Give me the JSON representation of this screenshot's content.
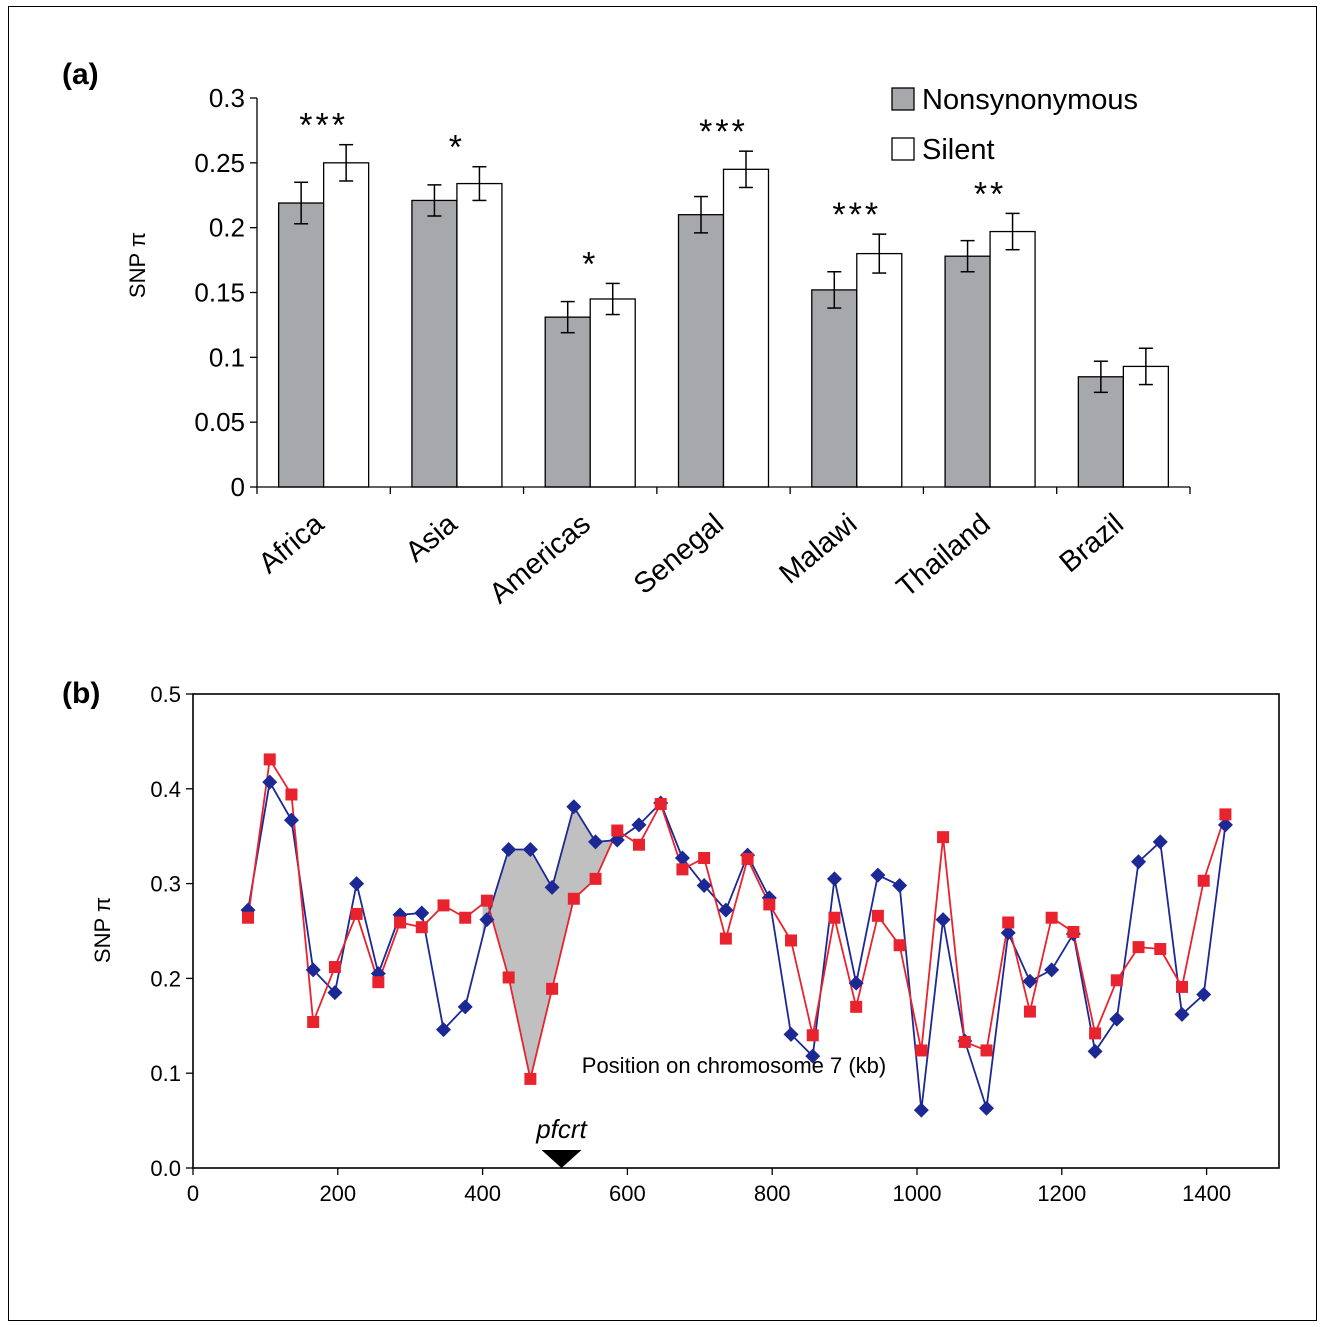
{
  "chart_data": [
    {
      "panel_label": "(a)",
      "type": "bar",
      "categories": [
        "Africa",
        "Asia",
        "Americas",
        "Senegal",
        "Malawi",
        "Thailand",
        "Brazil"
      ],
      "series": [
        {
          "name": "Nonsynonymous",
          "color": "#a6a8ab",
          "values": [
            0.219,
            0.221,
            0.131,
            0.21,
            0.152,
            0.178,
            0.085
          ],
          "errors": [
            0.016,
            0.012,
            0.012,
            0.014,
            0.014,
            0.012,
            0.012
          ]
        },
        {
          "name": "Silent",
          "color": "#ffffff",
          "values": [
            0.25,
            0.234,
            0.145,
            0.245,
            0.18,
            0.197,
            0.093
          ],
          "errors": [
            0.014,
            0.013,
            0.012,
            0.014,
            0.015,
            0.014,
            0.014
          ]
        }
      ],
      "significance": [
        "***",
        "*",
        "*",
        "***",
        "***",
        "**",
        ""
      ],
      "ylabel": "SNP π",
      "xlabel": "",
      "ylim": [
        0,
        0.3
      ],
      "yticks": [
        "0",
        "0.05",
        "0.1",
        "0.15",
        "0.2",
        "0.25",
        "0.3"
      ],
      "ytick_values": [
        0,
        0.05,
        0.1,
        0.15,
        0.2,
        0.25,
        0.3
      ],
      "legend_position": "top-right",
      "grid": false
    },
    {
      "panel_label": "(b)",
      "type": "line",
      "xlabel": "Position on chromosome 7 (kb)",
      "ylabel": "SNP π",
      "xlim": [
        0,
        1500
      ],
      "ylim": [
        0,
        0.5
      ],
      "xticks": [
        "0",
        "200",
        "400",
        "600",
        "800",
        "1000",
        "1200",
        "1400"
      ],
      "xtick_values": [
        0,
        200,
        400,
        600,
        800,
        1000,
        1200,
        1400
      ],
      "yticks": [
        "0.0",
        "0.1",
        "0.2",
        "0.3",
        "0.4",
        "0.5"
      ],
      "ytick_values": [
        0,
        0.1,
        0.2,
        0.3,
        0.4,
        0.5
      ],
      "grid": false,
      "annotation": {
        "text": "pfcrt",
        "x": 509,
        "marker": "triangle-down"
      },
      "shaded_region_x": [
        400,
        580
      ],
      "shade_color": "#c0c0c0",
      "series": [
        {
          "color": "#1c2894",
          "marker": "diamond",
          "x": [
            76,
            106,
            136,
            166,
            196,
            226,
            256,
            286,
            316,
            346,
            376,
            406,
            436,
            466,
            496,
            526,
            556,
            586,
            616,
            646,
            676,
            706,
            736,
            766,
            796,
            826,
            856,
            886,
            916,
            946,
            976,
            1006,
            1036,
            1066,
            1096,
            1126,
            1156,
            1186,
            1216,
            1246,
            1276,
            1306,
            1336,
            1366,
            1396,
            1426
          ],
          "y": [
            0.272,
            0.407,
            0.367,
            0.209,
            0.185,
            0.3,
            0.205,
            0.267,
            0.269,
            0.146,
            0.17,
            0.262,
            0.336,
            0.336,
            0.296,
            0.381,
            0.344,
            0.346,
            0.362,
            0.385,
            0.327,
            0.298,
            0.272,
            0.33,
            0.285,
            0.141,
            0.118,
            0.305,
            0.195,
            0.309,
            0.298,
            0.061,
            0.262,
            0.134,
            0.063,
            0.248,
            0.197,
            0.209,
            0.247,
            0.123,
            0.157,
            0.323,
            0.344,
            0.162,
            0.183,
            0.362
          ]
        },
        {
          "color": "#e8232e",
          "marker": "square",
          "x": [
            76,
            106,
            136,
            166,
            196,
            226,
            256,
            286,
            316,
            346,
            376,
            406,
            436,
            466,
            496,
            526,
            556,
            586,
            616,
            646,
            676,
            706,
            736,
            766,
            796,
            826,
            856,
            886,
            916,
            946,
            976,
            1006,
            1036,
            1066,
            1096,
            1126,
            1156,
            1186,
            1216,
            1246,
            1276,
            1306,
            1336,
            1366,
            1396,
            1426
          ],
          "y": [
            0.264,
            0.431,
            0.394,
            0.154,
            0.212,
            0.268,
            0.196,
            0.259,
            0.254,
            0.277,
            0.264,
            0.282,
            0.201,
            0.094,
            0.189,
            0.284,
            0.305,
            0.356,
            0.341,
            0.384,
            0.315,
            0.327,
            0.242,
            0.326,
            0.278,
            0.24,
            0.14,
            0.264,
            0.17,
            0.266,
            0.235,
            0.124,
            0.349,
            0.133,
            0.124,
            0.259,
            0.165,
            0.264,
            0.249,
            0.142,
            0.198,
            0.233,
            0.231,
            0.191,
            0.303,
            0.373
          ]
        }
      ]
    }
  ]
}
